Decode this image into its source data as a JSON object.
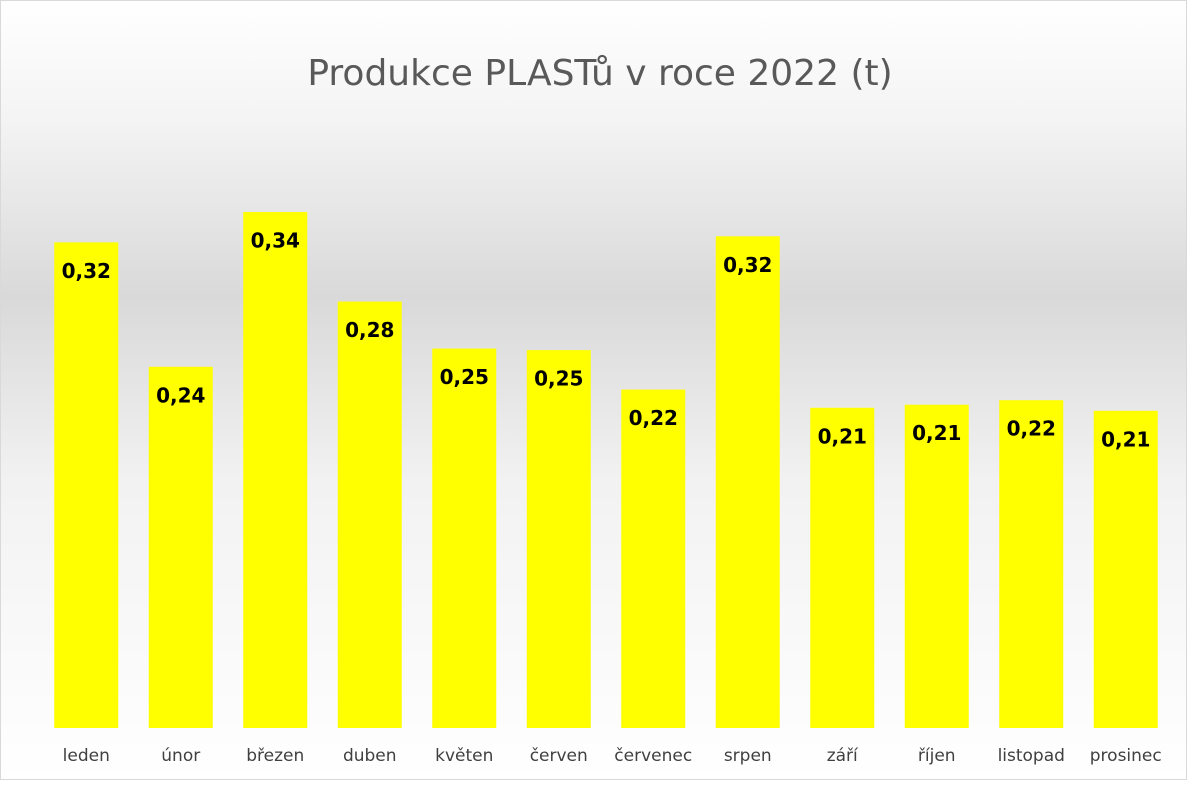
{
  "chart_data": {
    "type": "bar",
    "title": "Produkce PLASTů v roce 2022 (t)",
    "categories": [
      "leden",
      "únor",
      "březen",
      "duben",
      "květen",
      "červen",
      "červenec",
      "srpen",
      "září",
      "říjen",
      "listopad",
      "prosinec"
    ],
    "values": [
      0.32,
      0.238,
      0.34,
      0.281,
      0.25,
      0.249,
      0.223,
      0.324,
      0.211,
      0.213,
      0.216,
      0.209
    ],
    "value_labels": [
      "0,32",
      "0,24",
      "0,34",
      "0,28",
      "0,25",
      "0,25",
      "0,22",
      "0,32",
      "0,21",
      "0,21",
      "0,22",
      "0,21"
    ],
    "color": "#ffff00"
  }
}
